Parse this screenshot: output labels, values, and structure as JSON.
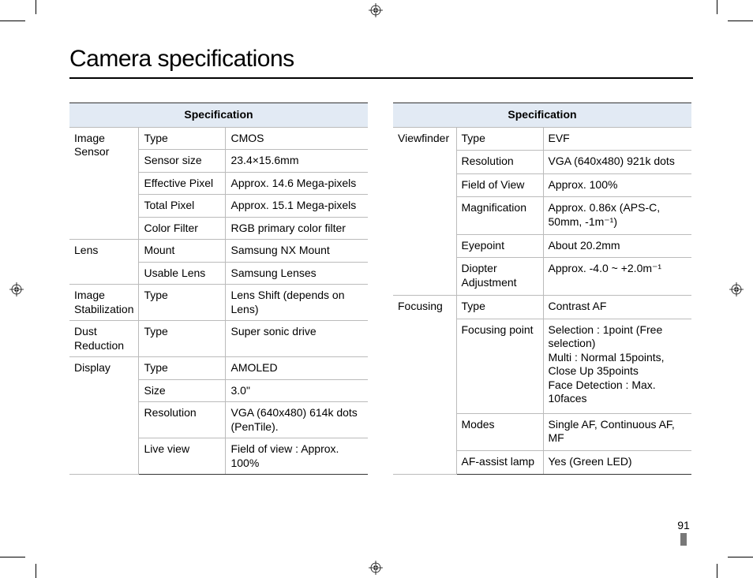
{
  "title": "Camera specifications",
  "header_label": "Specification",
  "page_number": "91",
  "left_rows": [
    {
      "cat": "Image Sensor",
      "label": "Type",
      "value": "CMOS",
      "catRowspan": 5
    },
    {
      "label": "Sensor size",
      "value": "23.4×15.6mm"
    },
    {
      "label": "Effective Pixel",
      "value": "Approx. 14.6 Mega-pixels"
    },
    {
      "label": "Total Pixel",
      "value": "Approx. 15.1 Mega-pixels"
    },
    {
      "label": "Color Filter",
      "value": "RGB primary color filter"
    },
    {
      "cat": "Lens",
      "label": "Mount",
      "value": "Samsung NX Mount",
      "catRowspan": 2
    },
    {
      "label": "Usable Lens",
      "value": "Samsung Lenses"
    },
    {
      "cat": "Image Stabilization",
      "label": "Type",
      "value": "Lens Shift (depends on Lens)",
      "catRowspan": 1
    },
    {
      "cat": "Dust Reduction",
      "label": "Type",
      "value": "Super sonic drive",
      "catRowspan": 1
    },
    {
      "cat": "Display",
      "label": "Type",
      "value": "AMOLED",
      "catRowspan": 4
    },
    {
      "label": "Size",
      "value": "3.0\""
    },
    {
      "label": "Resolution",
      "value": "VGA (640x480) 614k dots (PenTile)."
    },
    {
      "label": "Live view",
      "value": "Field of view : Approx. 100%"
    }
  ],
  "right_rows": [
    {
      "cat": "Viewfinder",
      "label": "Type",
      "value": "EVF",
      "catRowspan": 6
    },
    {
      "label": "Resolution",
      "value": "VGA (640x480) 921k dots"
    },
    {
      "label": "Field of View",
      "value": "Approx. 100%"
    },
    {
      "label": "Magnification",
      "value": "Approx. 0.86x (APS-C, 50mm, -1m⁻¹)"
    },
    {
      "label": "Eyepoint",
      "value": "About 20.2mm"
    },
    {
      "label": "Diopter Adjustment",
      "value": "Approx. -4.0 ~ +2.0m⁻¹"
    },
    {
      "cat": "Focusing",
      "label": "Type",
      "value": "Contrast AF",
      "catRowspan": 4
    },
    {
      "label": "Focusing point",
      "value": "Selection : 1point (Free selection)\nMulti : Normal 15points, Close Up 35points\nFace Detection : Max. 10faces"
    },
    {
      "label": "Modes",
      "value": "Single AF, Continuous AF, MF"
    },
    {
      "label": "AF-assist lamp",
      "value": "Yes (Green LED)"
    }
  ],
  "colors": {
    "header_bg": "#e2eaf4",
    "border": "#bbbbbb",
    "border_strong": "#333333",
    "pagebar": "#787878"
  }
}
